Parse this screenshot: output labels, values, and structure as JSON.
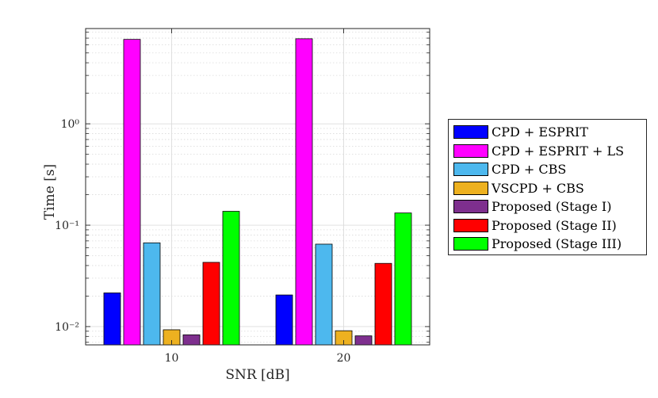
{
  "chart_data": {
    "type": "bar",
    "xlabel": "SNR [dB]",
    "ylabel": "Time [s]",
    "yscale": "log",
    "ylim": [
      0.0066,
      8.7
    ],
    "grid": true,
    "legend_position": "right, outside plot",
    "categories": [
      "10",
      "20"
    ],
    "ytick_labels": [
      "10⁻²",
      "10⁻¹",
      "10⁰"
    ],
    "ytick_values": [
      0.01,
      0.1,
      1
    ],
    "series": [
      {
        "name": "CPD + ESPRIT",
        "color": "#0000ff",
        "values": [
          0.0215,
          0.0205
        ]
      },
      {
        "name": "CPD + ESPRIT + LS",
        "color": "#ff00ff",
        "values": [
          6.8,
          6.9
        ]
      },
      {
        "name": "CPD + CBS",
        "color": "#4db8ee",
        "values": [
          0.067,
          0.065
        ]
      },
      {
        "name": "VSCPD + CBS",
        "color": "#edb120",
        "values": [
          0.0093,
          0.0091
        ]
      },
      {
        "name": "Proposed (Stage I)",
        "color": "#7e2f8e",
        "values": [
          0.0083,
          0.0081
        ]
      },
      {
        "name": "Proposed (Stage II)",
        "color": "#ff0000",
        "values": [
          0.043,
          0.042
        ]
      },
      {
        "name": "Proposed (Stage III)",
        "color": "#00ff00",
        "values": [
          0.137,
          0.132
        ]
      }
    ]
  }
}
